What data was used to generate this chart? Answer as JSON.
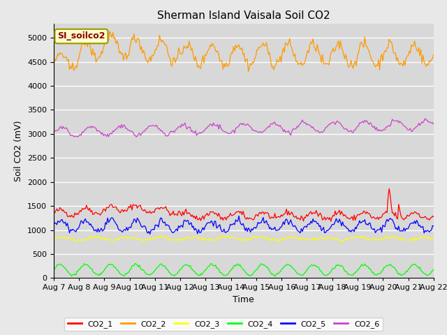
{
  "title": "Sherman Island Vaisala Soil CO2",
  "ylabel": "Soil CO2 (mV)",
  "xlabel": "Time",
  "annotation": "SI_soilco2",
  "x_tick_labels": [
    "Aug 7",
    "Aug 8",
    "Aug 9",
    "Aug 10",
    "Aug 11",
    "Aug 12",
    "Aug 13",
    "Aug 14",
    "Aug 15",
    "Aug 16",
    "Aug 17",
    "Aug 18",
    "Aug 19",
    "Aug 20",
    "Aug 21",
    "Aug 22"
  ],
  "ylim": [
    0,
    5300
  ],
  "yticks": [
    0,
    500,
    1000,
    1500,
    2000,
    2500,
    3000,
    3500,
    4000,
    4500,
    5000
  ],
  "series": {
    "CO2_1": {
      "color": "#ff0000"
    },
    "CO2_2": {
      "color": "#ff9900"
    },
    "CO2_3": {
      "color": "#ffff00"
    },
    "CO2_4": {
      "color": "#00ff00"
    },
    "CO2_5": {
      "color": "#0000ff"
    },
    "CO2_6": {
      "color": "#cc44cc"
    }
  },
  "legend_entries": [
    "CO2_1",
    "CO2_2",
    "CO2_3",
    "CO2_4",
    "CO2_5",
    "CO2_6"
  ],
  "legend_colors": [
    "#ff0000",
    "#ff9900",
    "#ffff00",
    "#00ff00",
    "#0000ff",
    "#cc44cc"
  ],
  "fig_bg": "#e8e8e8",
  "plot_bg": "#d8d8d8",
  "grid_color": "#ffffff",
  "title_fontsize": 11,
  "label_fontsize": 9,
  "tick_fontsize": 8,
  "annot_fontsize": 9
}
